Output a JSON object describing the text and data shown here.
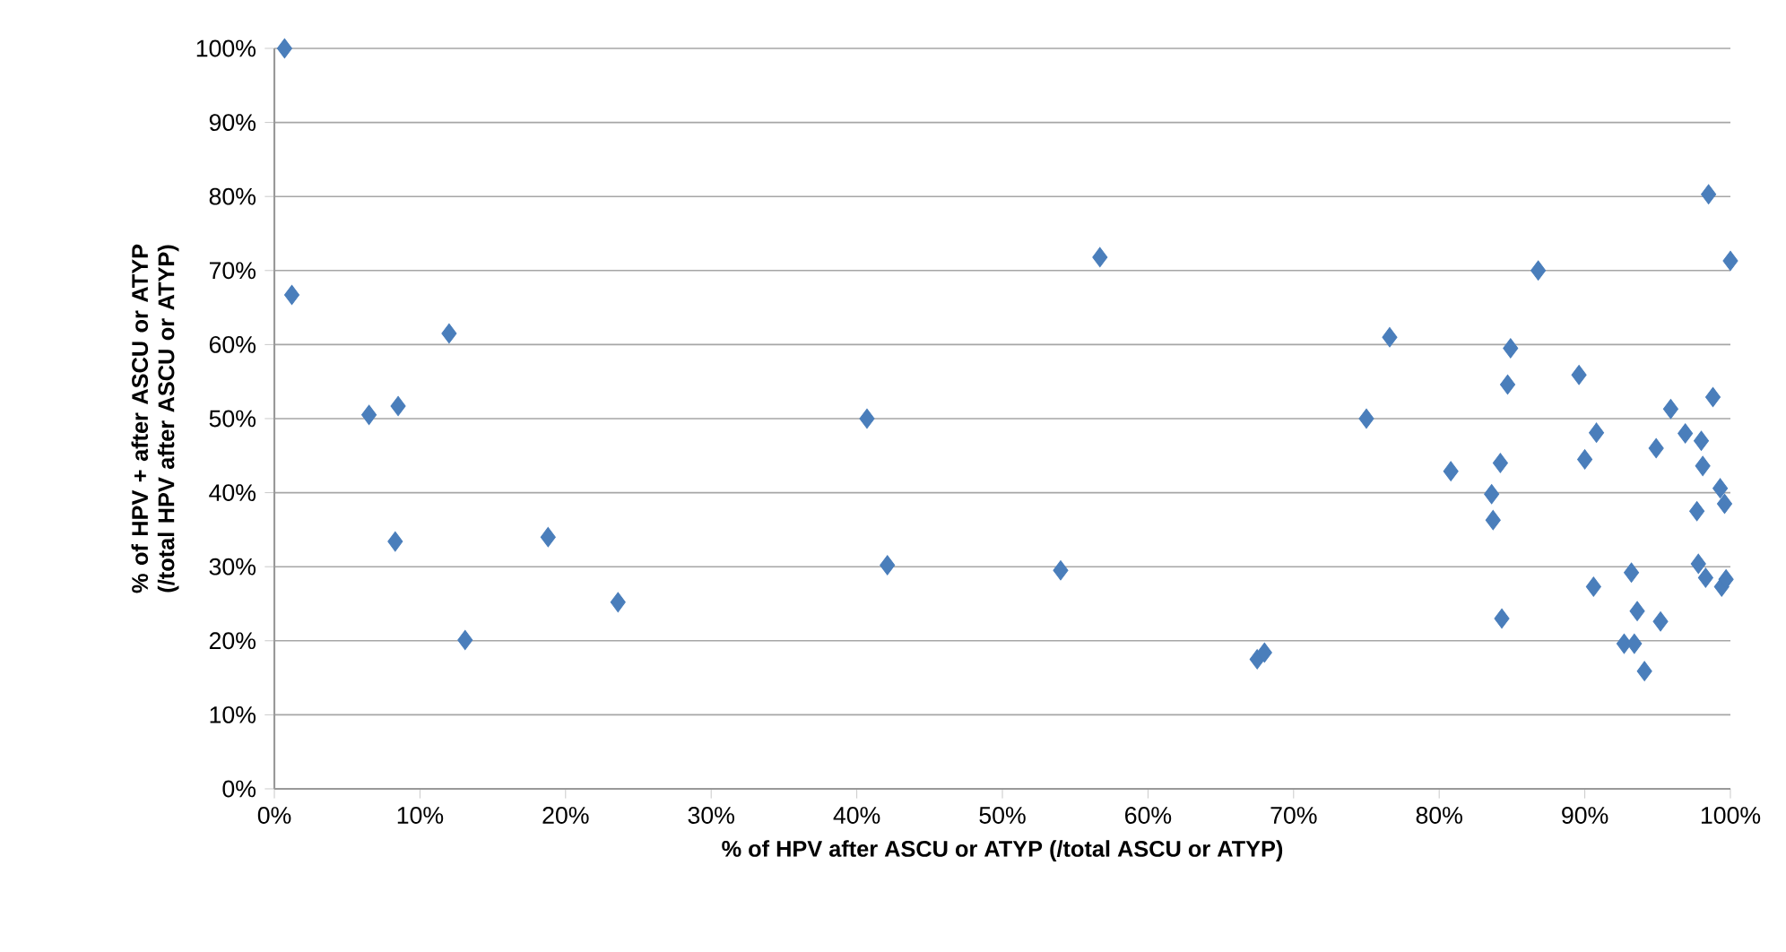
{
  "chart_data": {
    "type": "scatter",
    "xlabel": "% of HPV after ASCU or ATYP (/total ASCU or ATYP)",
    "ylabel": "% of HPV + after ASCU or ATYP (/total HPV after ASCU or ATYP)",
    "x": [
      0.7,
      1.2,
      6.5,
      8.5,
      8.3,
      12,
      13.1,
      18.8,
      23.6,
      40.7,
      42.1,
      54,
      56.7,
      67.5,
      68,
      75,
      76.6,
      80.8,
      83.6,
      83.7,
      84.2,
      84.3,
      84.7,
      84.9,
      86.8,
      89.6,
      90,
      90.6,
      90.8,
      92.7,
      93.2,
      93.4,
      93.6,
      94.1,
      94.9,
      95.2,
      95.9,
      96.9,
      97.7,
      97.8,
      98,
      98.1,
      98.3,
      98.5,
      98.8,
      99.3,
      99.4,
      99.6,
      99.7,
      100
    ],
    "values": [
      100,
      66.7,
      50.5,
      51.7,
      33.4,
      61.5,
      20.1,
      34,
      25.2,
      50,
      30.2,
      29.5,
      71.8,
      17.5,
      18.4,
      50,
      61,
      42.9,
      39.8,
      36.3,
      44,
      23,
      54.6,
      59.5,
      70,
      55.9,
      44.5,
      27.3,
      48.1,
      19.6,
      29.2,
      19.6,
      24,
      15.9,
      46,
      22.6,
      51.3,
      48,
      37.5,
      30.4,
      47,
      43.6,
      28.5,
      80.3,
      52.9,
      40.6,
      27.3,
      38.5,
      28.3,
      71.3
    ],
    "color": "#4a7ebb",
    "marker": "diamond",
    "grid": "y",
    "xlim": [
      0,
      100
    ],
    "ylim": [
      0,
      100
    ],
    "xticks": [
      {
        "value": 0,
        "label": "0%"
      },
      {
        "value": 10,
        "label": "10%"
      },
      {
        "value": 20,
        "label": "20%"
      },
      {
        "value": 30,
        "label": "30%"
      },
      {
        "value": 40,
        "label": "40%"
      },
      {
        "value": 50,
        "label": "50%"
      },
      {
        "value": 60,
        "label": "60%"
      },
      {
        "value": 70,
        "label": "70%"
      },
      {
        "value": 80,
        "label": "80%"
      },
      {
        "value": 90,
        "label": "90%"
      },
      {
        "value": 100,
        "label": "100%"
      }
    ],
    "yticks": [
      {
        "value": 0,
        "label": "0%"
      },
      {
        "value": 10,
        "label": "10%"
      },
      {
        "value": 20,
        "label": "20%"
      },
      {
        "value": 30,
        "label": "30%"
      },
      {
        "value": 40,
        "label": "40%"
      },
      {
        "value": 50,
        "label": "50%"
      },
      {
        "value": 60,
        "label": "60%"
      },
      {
        "value": 70,
        "label": "70%"
      },
      {
        "value": 80,
        "label": "80%"
      },
      {
        "value": 90,
        "label": "90%"
      },
      {
        "value": 100,
        "label": "100%"
      }
    ]
  }
}
